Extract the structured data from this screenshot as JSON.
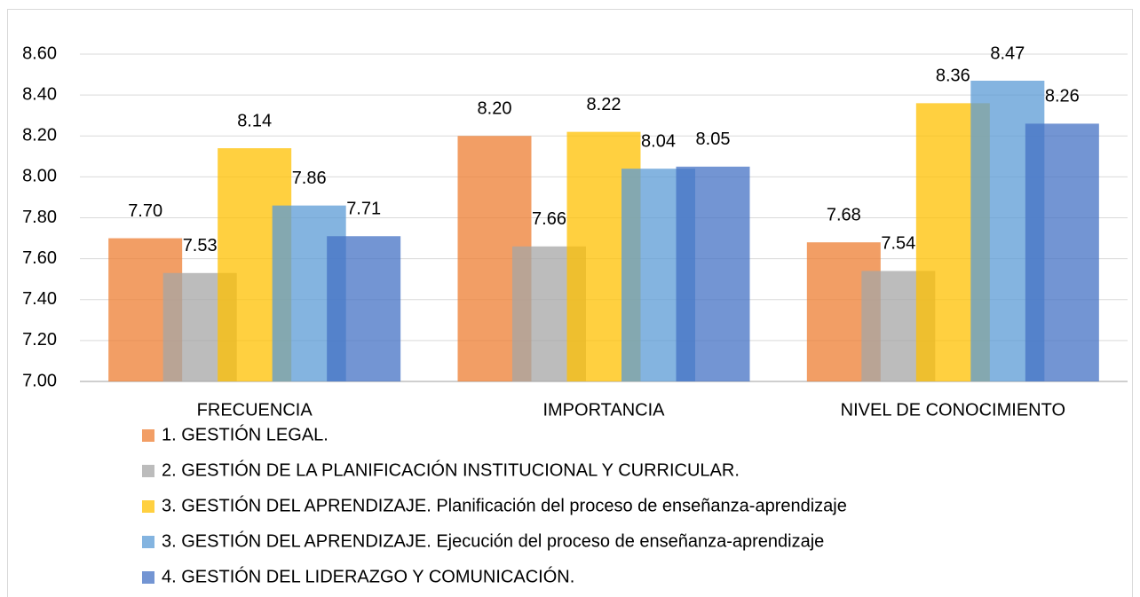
{
  "chart_data": {
    "type": "bar",
    "categories": [
      "FRECUENCIA",
      "IMPORTANCIA",
      "NIVEL DE CONOCIMIENTO"
    ],
    "series": [
      {
        "name": "1. GESTIÓN LEGAL.",
        "color": "#ed7d31",
        "values": [
          7.7,
          8.2,
          7.68
        ],
        "value_labels": [
          "7.70",
          "8.20",
          "7.68"
        ]
      },
      {
        "name": "2. GESTIÓN DE LA PLANIFICACIÓN INSTITUCIONAL Y CURRICULAR.",
        "color": "#a5a5a5",
        "values": [
          7.53,
          7.66,
          7.54
        ],
        "value_labels": [
          "7.53",
          "7.66",
          "7.54"
        ]
      },
      {
        "name": "3. GESTIÓN DEL APRENDIZAJE. Planificación del proceso de enseñanza-aprendizaje",
        "color": "#ffc000",
        "values": [
          8.14,
          8.22,
          8.36
        ],
        "value_labels": [
          "8.14",
          "8.22",
          "8.36"
        ]
      },
      {
        "name": "3. GESTIÓN DEL APRENDIZAJE. Ejecución del proceso de enseñanza-aprendizaje",
        "color": "#5b9bd5",
        "values": [
          7.86,
          8.04,
          8.47
        ],
        "value_labels": [
          "7.86",
          "8.04",
          "8.47"
        ]
      },
      {
        "name": "4. GESTIÓN DEL LIDERAZGO Y COMUNICACIÓN.",
        "color": "#4472c4",
        "values": [
          7.71,
          8.05,
          8.26
        ],
        "value_labels": [
          "7.71",
          "8.05",
          "8.26"
        ]
      }
    ],
    "ylim": [
      7.0,
      8.6
    ],
    "yticks": [
      {
        "value": 7.0,
        "label": "7.00"
      },
      {
        "value": 7.2,
        "label": "7.20"
      },
      {
        "value": 7.4,
        "label": "7.40"
      },
      {
        "value": 7.6,
        "label": "7.60"
      },
      {
        "value": 7.8,
        "label": "7.80"
      },
      {
        "value": 8.0,
        "label": "8.00"
      },
      {
        "value": 8.2,
        "label": "8.20"
      },
      {
        "value": 8.4,
        "label": "8.40"
      },
      {
        "value": 8.6,
        "label": "8.60"
      }
    ],
    "grid": true,
    "legend": "bottom"
  }
}
